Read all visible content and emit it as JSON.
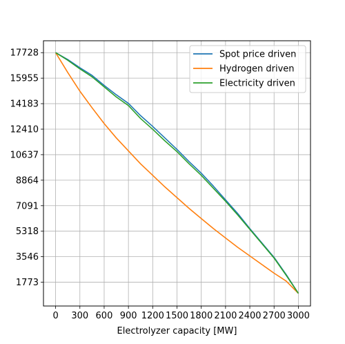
{
  "chart_data": {
    "type": "line",
    "title": "",
    "xlabel": "Electrolyzer capacity [MW]",
    "ylabel": "",
    "x": [
      0,
      150,
      300,
      450,
      600,
      750,
      900,
      1050,
      1200,
      1350,
      1500,
      1650,
      1800,
      1950,
      2100,
      2250,
      2400,
      2550,
      2700,
      2850,
      3000
    ],
    "xticks": [
      "0",
      "300",
      "600",
      "900",
      "1200",
      "1500",
      "1800",
      "2100",
      "2400",
      "2700",
      "3000"
    ],
    "xtick_values": [
      0,
      300,
      600,
      900,
      1200,
      1500,
      1800,
      2100,
      2400,
      2700,
      3000
    ],
    "yticks": [
      "1773",
      "3546",
      "5318",
      "7091",
      "8864",
      "10637",
      "12410",
      "14183",
      "15955",
      "17728"
    ],
    "ytick_values": [
      1773,
      3546,
      5318,
      7091,
      8864,
      10637,
      12410,
      14183,
      15955,
      17728
    ],
    "xlim": [
      -150,
      3150
    ],
    "ylim": [
      119,
      18555
    ],
    "grid": true,
    "legend_position": "top-right",
    "series": [
      {
        "name": "Spot price driven",
        "color": "#1f77b4",
        "values": [
          17728,
          17250,
          16680,
          16150,
          15450,
          14800,
          14200,
          13350,
          12600,
          11800,
          11000,
          10150,
          9350,
          8450,
          7500,
          6550,
          5500,
          4500,
          3500,
          2300,
          1000
        ]
      },
      {
        "name": "Hydrogen driven",
        "color": "#ff7f0e",
        "values": [
          17728,
          16350,
          15050,
          13900,
          12800,
          11800,
          10900,
          10000,
          9200,
          8400,
          7650,
          6900,
          6200,
          5500,
          4850,
          4200,
          3600,
          3000,
          2400,
          1850,
          1000
        ]
      },
      {
        "name": "Electricity driven",
        "color": "#2ca02c",
        "values": [
          17728,
          17200,
          16600,
          16050,
          15350,
          14650,
          14050,
          13150,
          12400,
          11600,
          10850,
          10000,
          9200,
          8300,
          7400,
          6450,
          5450,
          4450,
          3450,
          2250,
          1000
        ]
      }
    ]
  }
}
